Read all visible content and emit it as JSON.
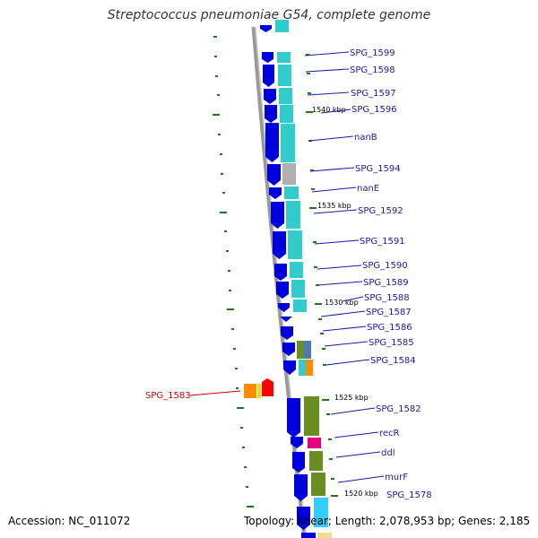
{
  "title": "Streptococcus pneumoniae G54, complete genome",
  "footer": {
    "accession": "Accession: NC_011072",
    "summary": "Topology: linear; Length: 2,078,953 bp; Genes: 2,185"
  },
  "colors": {
    "backbone": "#999999",
    "gene_blue": "#0000dd",
    "label_blue": "#1a1aa6",
    "label_red": "#cc0000",
    "cyan": "#33cccc",
    "olive": "#6b8e23",
    "gc_skew": "#1a7a1a",
    "orange": "#ff8c00",
    "red": "#ff0000",
    "magenta": "#e6007e",
    "grey": "#b0b0b0"
  },
  "gene_labels": [
    {
      "name": "SPG_1599",
      "color": "blue"
    },
    {
      "name": "SPG_1598",
      "color": "blue"
    },
    {
      "name": "SPG_1597",
      "color": "blue"
    },
    {
      "name": "SPG_1596",
      "color": "blue"
    },
    {
      "name": "nanB",
      "color": "blue"
    },
    {
      "name": "SPG_1594",
      "color": "blue"
    },
    {
      "name": "nanE",
      "color": "blue"
    },
    {
      "name": "SPG_1592",
      "color": "blue"
    },
    {
      "name": "SPG_1591",
      "color": "blue"
    },
    {
      "name": "SPG_1590",
      "color": "blue"
    },
    {
      "name": "SPG_1589",
      "color": "blue"
    },
    {
      "name": "SPG_1588",
      "color": "blue"
    },
    {
      "name": "SPG_1587",
      "color": "blue"
    },
    {
      "name": "SPG_1586",
      "color": "blue"
    },
    {
      "name": "SPG_1585",
      "color": "blue"
    },
    {
      "name": "SPG_1584",
      "color": "blue"
    },
    {
      "name": "SPG_1583",
      "color": "red"
    },
    {
      "name": "SPG_1582",
      "color": "blue"
    },
    {
      "name": "recR",
      "color": "blue"
    },
    {
      "name": "ddl",
      "color": "blue"
    },
    {
      "name": "murF",
      "color": "blue"
    },
    {
      "name": "SPG_1578",
      "color": "blue"
    }
  ],
  "ticks": [
    "1540 kbp",
    "1535 kbp",
    "1530 kbp",
    "1525 kbp",
    "1520 kbp"
  ]
}
